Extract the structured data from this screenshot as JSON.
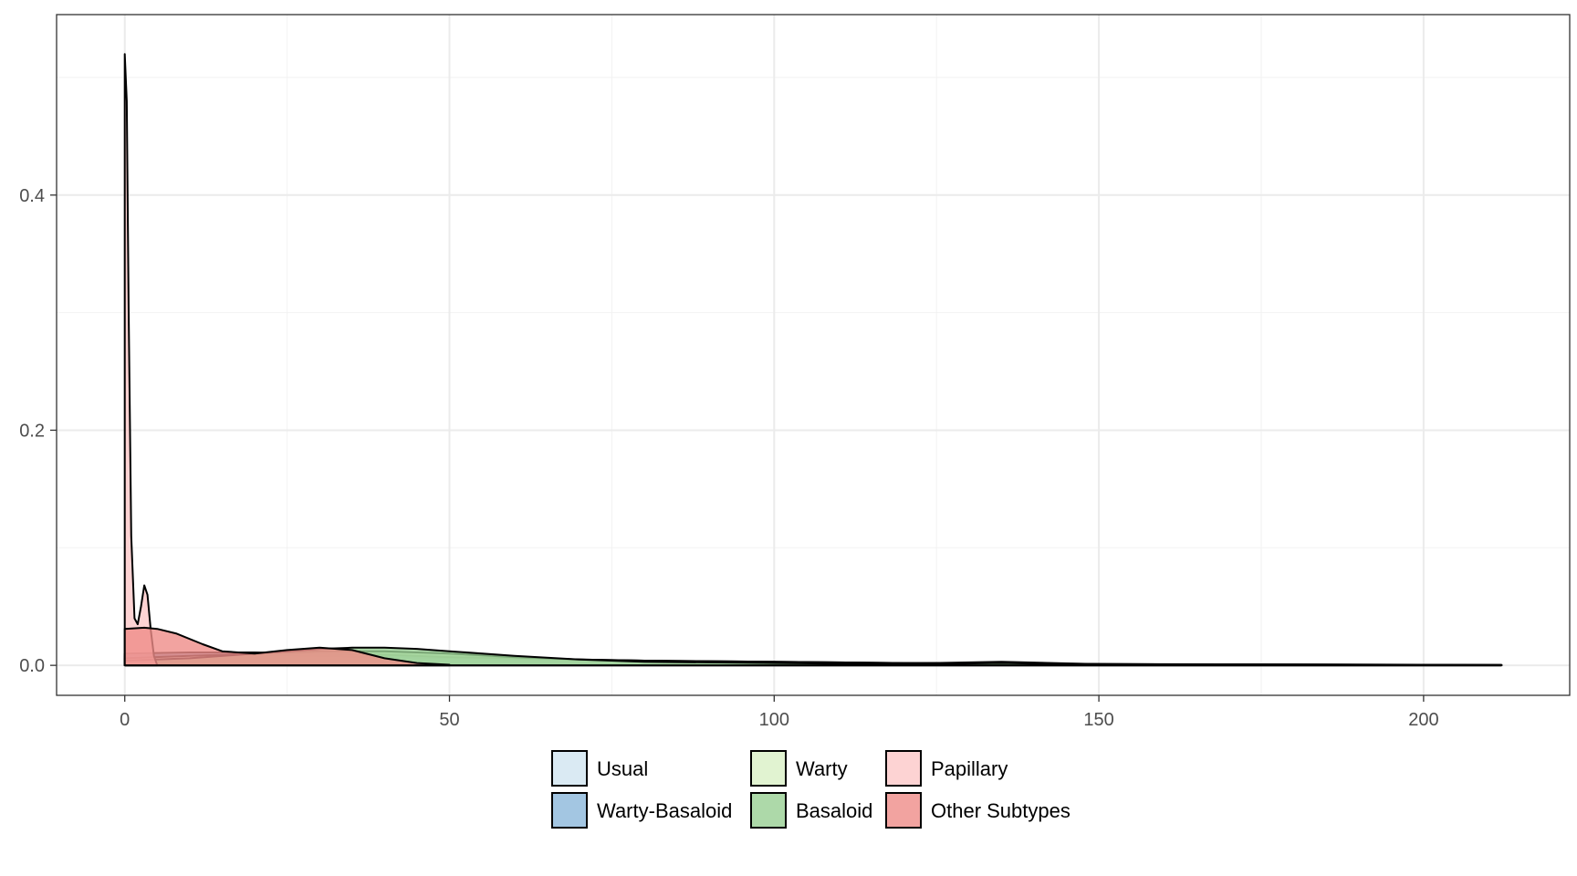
{
  "chart_data": {
    "type": "area",
    "title": "",
    "xlabel": "",
    "ylabel": "",
    "xlim": [
      -10.5,
      222.5
    ],
    "ylim": [
      -0.0255,
      0.5535
    ],
    "grid": true,
    "x_ticks": [
      0,
      50,
      100,
      150,
      200
    ],
    "x_tick_labels": [
      "0",
      "50",
      "100",
      "150",
      "200"
    ],
    "y_ticks": [
      0.0,
      0.2,
      0.4
    ],
    "y_tick_labels": [
      "0.0",
      "0.2",
      "0.4"
    ],
    "legend_position": "bottom",
    "series": [
      {
        "name": "Usual",
        "color": "#d1e5f0",
        "x": [
          0,
          10,
          20,
          30,
          40,
          50,
          60,
          80,
          100,
          120,
          140,
          160,
          180,
          200,
          212
        ],
        "y": [
          0.008,
          0.009,
          0.009,
          0.008,
          0.007,
          0.006,
          0.005,
          0.004,
          0.003,
          0.002,
          0.0015,
          0.001,
          0.0008,
          0.0005,
          0.0003
        ]
      },
      {
        "name": "Warty-Basaloid",
        "color": "#8cb8db",
        "x": [
          0,
          10,
          20,
          30,
          40,
          50,
          60,
          80,
          100,
          120,
          135,
          150,
          170,
          190,
          212
        ],
        "y": [
          0.01,
          0.011,
          0.011,
          0.01,
          0.009,
          0.007,
          0.006,
          0.004,
          0.003,
          0.002,
          0.002,
          0.001,
          0.0008,
          0.0005,
          0.0003
        ]
      },
      {
        "name": "Warty",
        "color": "#d9f0c6",
        "x": [
          0,
          10,
          20,
          30,
          40,
          50,
          60,
          70,
          80,
          100,
          120,
          135,
          150,
          200,
          212
        ],
        "y": [
          0.006,
          0.008,
          0.01,
          0.012,
          0.012,
          0.01,
          0.007,
          0.005,
          0.004,
          0.002,
          0.0015,
          0.003,
          0.001,
          0.0005,
          0.0002
        ]
      },
      {
        "name": "Basaloid",
        "color": "#99d094",
        "x": [
          0,
          10,
          20,
          30,
          35,
          40,
          45,
          50,
          60,
          70,
          80,
          100,
          120,
          135,
          150,
          212
        ],
        "y": [
          0.004,
          0.006,
          0.01,
          0.014,
          0.015,
          0.015,
          0.014,
          0.012,
          0.008,
          0.005,
          0.003,
          0.002,
          0.001,
          0.002,
          0.0005,
          0.0002
        ]
      },
      {
        "name": "Papillary",
        "color": "#fcc8c8",
        "x": [
          0,
          0.3,
          0.6,
          1,
          1.5,
          2,
          2.5,
          3,
          3.5,
          4,
          4.5,
          5
        ],
        "y": [
          0.52,
          0.48,
          0.3,
          0.11,
          0.04,
          0.035,
          0.05,
          0.068,
          0.06,
          0.03,
          0.008,
          0.0
        ]
      },
      {
        "name": "Other Subtypes",
        "color": "#ef8c88",
        "x": [
          0,
          3,
          5,
          8,
          12,
          15,
          20,
          25,
          30,
          35,
          40,
          45,
          50
        ],
        "y": [
          0.031,
          0.032,
          0.031,
          0.027,
          0.018,
          0.012,
          0.01,
          0.013,
          0.015,
          0.013,
          0.006,
          0.002,
          0.0005
        ]
      }
    ]
  }
}
